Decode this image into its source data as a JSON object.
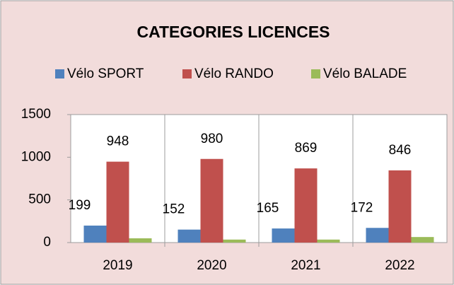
{
  "chart_data": {
    "type": "bar",
    "title": "CATEGORIES LICENCES",
    "categories": [
      "2019",
      "2020",
      "2021",
      "2022"
    ],
    "series": [
      {
        "name": "Vélo SPORT",
        "color": "#4f81bd",
        "values": [
          199,
          152,
          165,
          172
        ]
      },
      {
        "name": "Vélo RANDO",
        "color": "#c0504d",
        "values": [
          948,
          980,
          869,
          846
        ]
      },
      {
        "name": "Vélo BALADE",
        "color": "#9bbb59",
        "values": [
          50,
          35,
          35,
          65
        ]
      }
    ],
    "labeled_series": [
      0,
      1
    ],
    "ylim": [
      0,
      1500
    ],
    "yticks": [
      0,
      500,
      1000,
      1500
    ],
    "grid": false
  }
}
